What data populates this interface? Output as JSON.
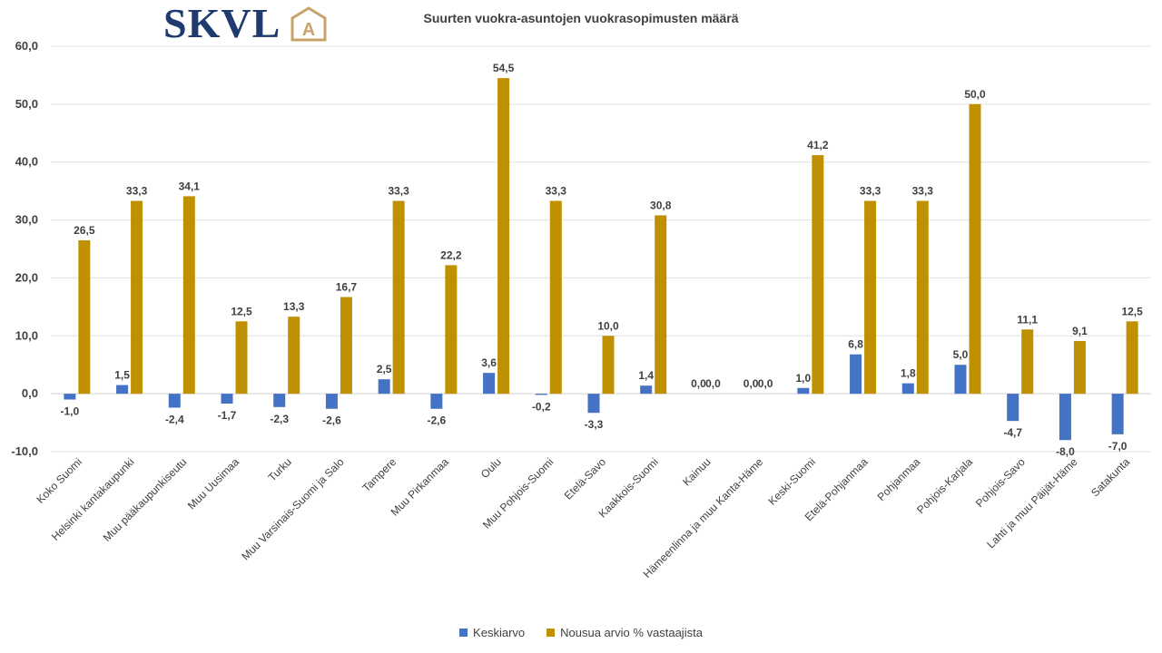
{
  "logo": {
    "text": "SKVL",
    "mark_letter": "A",
    "text_color": "#1f3a6e",
    "mark_color": "#c8a46a"
  },
  "chart_data": {
    "type": "bar",
    "title": "Suurten vuokra-asuntojen vuokrasopimusten määrä",
    "xlabel": "",
    "ylabel": "",
    "ylim": [
      -10,
      60
    ],
    "yticks": [
      "60,0",
      "50,0",
      "40,0",
      "30,0",
      "20,0",
      "10,0",
      "0,0",
      "-10,0"
    ],
    "ytick_values": [
      60,
      50,
      40,
      30,
      20,
      10,
      0,
      -10
    ],
    "grid": true,
    "legend_position": "bottom",
    "categories": [
      "Koko Suomi",
      "Helsinki kantakaupunki",
      "Muu pääkaupunkiseutu",
      "Muu Uusimaa",
      "Turku",
      "Muu Varsinais-Suomi ja Salo",
      "Tampere",
      "Muu Pirkanmaa",
      "Oulu",
      "Muu Pohjois-Suomi",
      "Etelä-Savo",
      "Kaakkois-Suomi",
      "Kainuu",
      "Hämeenlinna ja muu Kanta-Häme",
      "Keski-Suomi",
      "Etelä-Pohjanmaa",
      "Pohjanmaa",
      "Pohjois-Karjala",
      "Pohjois-Savo",
      "Lahti ja muu Päijät-Häme",
      "Satakunta"
    ],
    "series": [
      {
        "name": "Keskiarvo",
        "color": "#4472c4",
        "values": [
          -1.0,
          1.5,
          -2.4,
          -1.7,
          -2.3,
          -2.6,
          2.5,
          -2.6,
          3.6,
          -0.2,
          -3.3,
          1.4,
          0.0,
          0.0,
          1.0,
          6.8,
          1.8,
          5.0,
          -4.7,
          -8.0,
          -7.0
        ],
        "labels": [
          "-1,0",
          "1,5",
          "-2,4",
          "-1,7",
          "-2,3",
          "-2,6",
          "2,5",
          "-2,6",
          "3,6",
          "-0,2",
          "-3,3",
          "1,4",
          "0,0",
          "0,0",
          "1,0",
          "6,8",
          "1,8",
          "5,0",
          "-4,7",
          "-8,0",
          "-7,0"
        ]
      },
      {
        "name": "Nousua arvio % vastaajista",
        "color": "#bf9000",
        "values": [
          26.5,
          33.3,
          34.1,
          12.5,
          13.3,
          16.7,
          33.3,
          22.2,
          54.5,
          33.3,
          10.0,
          30.8,
          0.0,
          0.0,
          41.2,
          33.3,
          33.3,
          50.0,
          11.1,
          9.1,
          12.5
        ],
        "labels": [
          "26,5",
          "33,3",
          "34,1",
          "12,5",
          "13,3",
          "16,7",
          "33,3",
          "22,2",
          "54,5",
          "33,3",
          "10,0",
          "30,8",
          "0,0",
          "0,0",
          "41,2",
          "33,3",
          "33,3",
          "50,0",
          "11,1",
          "9,1",
          "12,5"
        ]
      }
    ]
  }
}
